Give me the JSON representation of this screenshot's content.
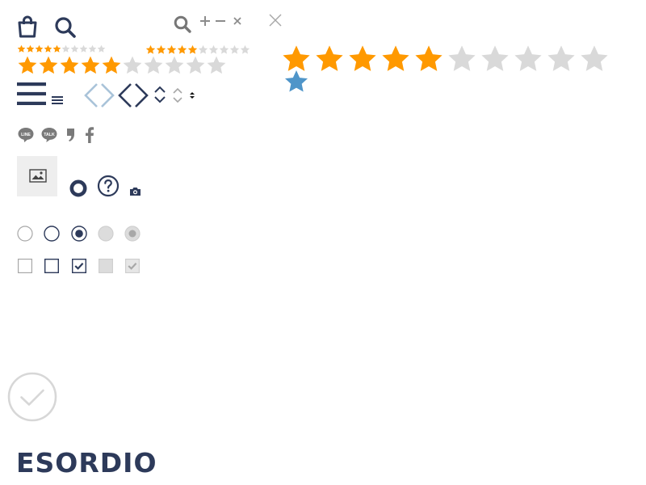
{
  "colors": {
    "navy": "#2d3a5a",
    "gray_icon": "#7a7a7a",
    "star_on": "#ff9900",
    "star_off": "#d9d9d9",
    "star_blue": "#4f95c9",
    "light_gray_bg": "#eeeeee",
    "check_circle": "#d7d7d7",
    "chevron_light": "#a9c3d9"
  },
  "icons": {
    "bag": "shopping-bag-icon",
    "search": "search-icon",
    "plus": "plus-icon",
    "minus": "minus-icon",
    "close": "close-icon",
    "menu": "hamburger-menu-icon",
    "chevrons": "chevron-left-right-icon",
    "updown": "sort-updown-icon",
    "line": "line-chat-icon",
    "talk": "kakao-talk-icon",
    "quote": "quote-icon",
    "facebook": "facebook-icon",
    "image": "image-icon",
    "help": "question-circle-icon",
    "camera": "camera-icon",
    "check_circle": "check-circle-icon"
  },
  "ratings": {
    "small_a": {
      "value": 5,
      "max": 10
    },
    "small_b": {
      "value": 5,
      "max": 10
    },
    "medium": {
      "value": 5,
      "max": 10
    },
    "large": {
      "value": 5,
      "max": 10
    }
  },
  "social": {
    "line_text": "LINE",
    "talk_text": "TALK"
  },
  "form_controls": {
    "radios": [
      {
        "state": "unchecked"
      },
      {
        "state": "unchecked-dark"
      },
      {
        "state": "checked"
      },
      {
        "state": "disabled"
      },
      {
        "state": "disabled-checked"
      }
    ],
    "checkboxes": [
      {
        "state": "unchecked"
      },
      {
        "state": "unchecked-dark"
      },
      {
        "state": "checked"
      },
      {
        "state": "disabled"
      },
      {
        "state": "disabled-checked"
      }
    ]
  },
  "brand": {
    "name": "ESORDIO"
  }
}
